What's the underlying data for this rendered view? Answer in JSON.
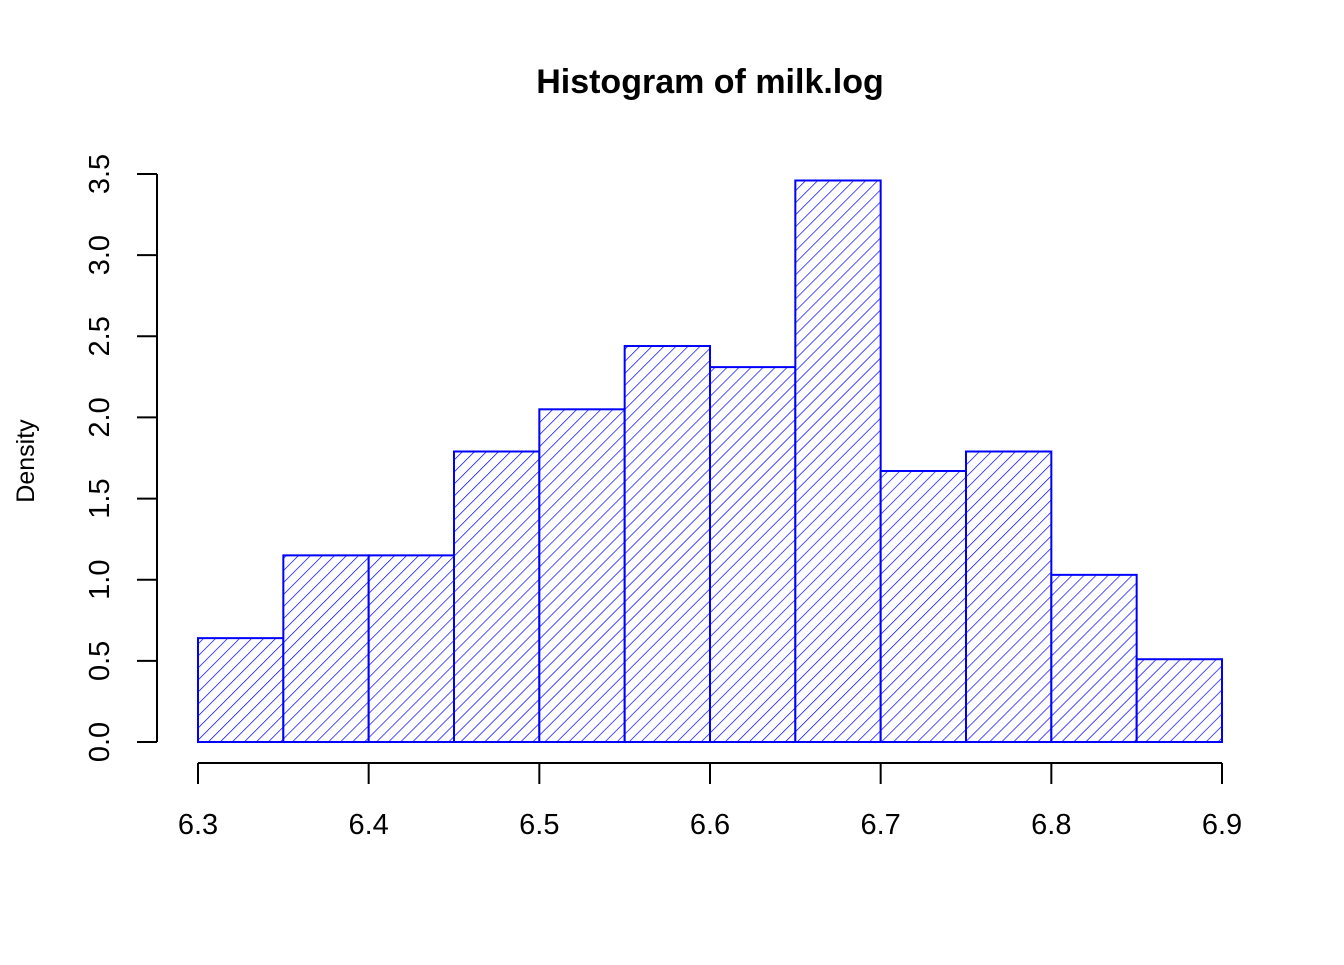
{
  "chart_data": {
    "type": "bar",
    "title": "Histogram of milk.log",
    "xlabel": "",
    "ylabel": "Density",
    "bins": [
      {
        "start": 6.3,
        "end": 6.35,
        "density": 0.64
      },
      {
        "start": 6.35,
        "end": 6.4,
        "density": 1.15
      },
      {
        "start": 6.4,
        "end": 6.45,
        "density": 1.15
      },
      {
        "start": 6.45,
        "end": 6.5,
        "density": 1.79
      },
      {
        "start": 6.5,
        "end": 6.55,
        "density": 2.05
      },
      {
        "start": 6.55,
        "end": 6.6,
        "density": 2.44
      },
      {
        "start": 6.6,
        "end": 6.65,
        "density": 2.31
      },
      {
        "start": 6.65,
        "end": 6.7,
        "density": 3.46
      },
      {
        "start": 6.7,
        "end": 6.75,
        "density": 1.67
      },
      {
        "start": 6.75,
        "end": 6.8,
        "density": 1.79
      },
      {
        "start": 6.8,
        "end": 6.85,
        "density": 1.03
      },
      {
        "start": 6.85,
        "end": 6.9,
        "density": 0.51
      }
    ],
    "xlim": [
      6.3,
      6.9
    ],
    "ylim": [
      0,
      3.5
    ],
    "x_ticks": [
      6.3,
      6.4,
      6.5,
      6.6,
      6.7,
      6.8,
      6.9
    ],
    "x_tick_labels": [
      "6.3",
      "6.4",
      "6.5",
      "6.6",
      "6.7",
      "6.8",
      "6.9"
    ],
    "y_ticks": [
      0,
      0.5,
      1,
      1.5,
      2,
      2.5,
      3,
      3.5
    ],
    "y_tick_labels": [
      "0.0",
      "0.5",
      "1.0",
      "1.5",
      "2.0",
      "2.5",
      "3.0",
      "3.5"
    ],
    "bar_color": "#0000ff",
    "fill": "diagonal-hatch",
    "grid": false,
    "legend": "none"
  }
}
